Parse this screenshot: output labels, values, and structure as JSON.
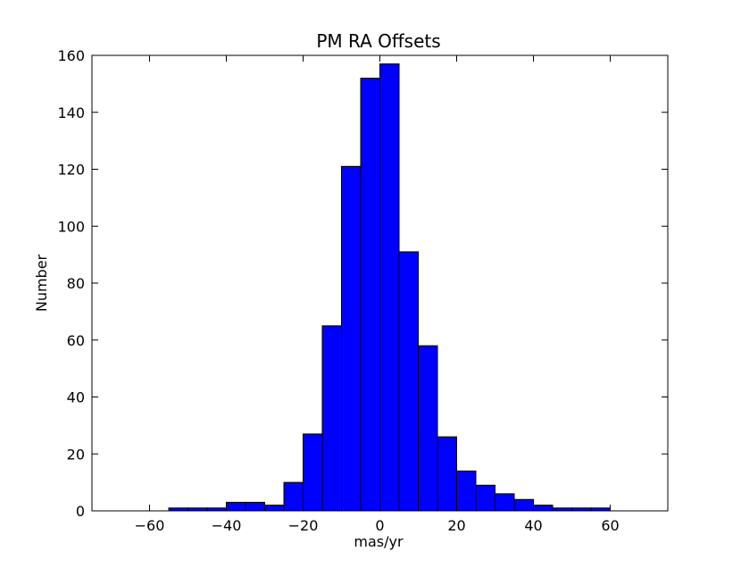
{
  "chart_data": {
    "type": "bar",
    "title": "PM RA Offsets",
    "xlabel": "mas/yr",
    "ylabel": "Number",
    "xlim": [
      -75,
      75
    ],
    "ylim": [
      0,
      160
    ],
    "x_ticks": [
      -60,
      -40,
      -20,
      0,
      20,
      40,
      60
    ],
    "x_tick_labels": [
      "−60",
      "−40",
      "−20",
      "0",
      "20",
      "40",
      "60"
    ],
    "y_ticks": [
      0,
      20,
      40,
      60,
      80,
      100,
      120,
      140,
      160
    ],
    "y_tick_labels": [
      "0",
      "20",
      "40",
      "60",
      "80",
      "100",
      "120",
      "140",
      "160"
    ],
    "grid": false,
    "bar_color": "#0000ff",
    "edge_color": "#000000",
    "bins": [
      {
        "x0": -55,
        "x1": -50,
        "count": 1
      },
      {
        "x0": -50,
        "x1": -45,
        "count": 1
      },
      {
        "x0": -45,
        "x1": -40,
        "count": 1
      },
      {
        "x0": -40,
        "x1": -35,
        "count": 3
      },
      {
        "x0": -35,
        "x1": -30,
        "count": 3
      },
      {
        "x0": -30,
        "x1": -25,
        "count": 2
      },
      {
        "x0": -25,
        "x1": -20,
        "count": 10
      },
      {
        "x0": -20,
        "x1": -15,
        "count": 27
      },
      {
        "x0": -15,
        "x1": -10,
        "count": 65
      },
      {
        "x0": -10,
        "x1": -5,
        "count": 121
      },
      {
        "x0": -5,
        "x1": 0,
        "count": 152
      },
      {
        "x0": 0,
        "x1": 5,
        "count": 157
      },
      {
        "x0": 5,
        "x1": 10,
        "count": 91
      },
      {
        "x0": 10,
        "x1": 15,
        "count": 58
      },
      {
        "x0": 15,
        "x1": 20,
        "count": 26
      },
      {
        "x0": 20,
        "x1": 25,
        "count": 14
      },
      {
        "x0": 25,
        "x1": 30,
        "count": 9
      },
      {
        "x0": 30,
        "x1": 35,
        "count": 6
      },
      {
        "x0": 35,
        "x1": 40,
        "count": 4
      },
      {
        "x0": 40,
        "x1": 45,
        "count": 2
      },
      {
        "x0": 45,
        "x1": 50,
        "count": 1
      },
      {
        "x0": 50,
        "x1": 55,
        "count": 1
      },
      {
        "x0": 55,
        "x1": 60,
        "count": 1
      }
    ]
  }
}
